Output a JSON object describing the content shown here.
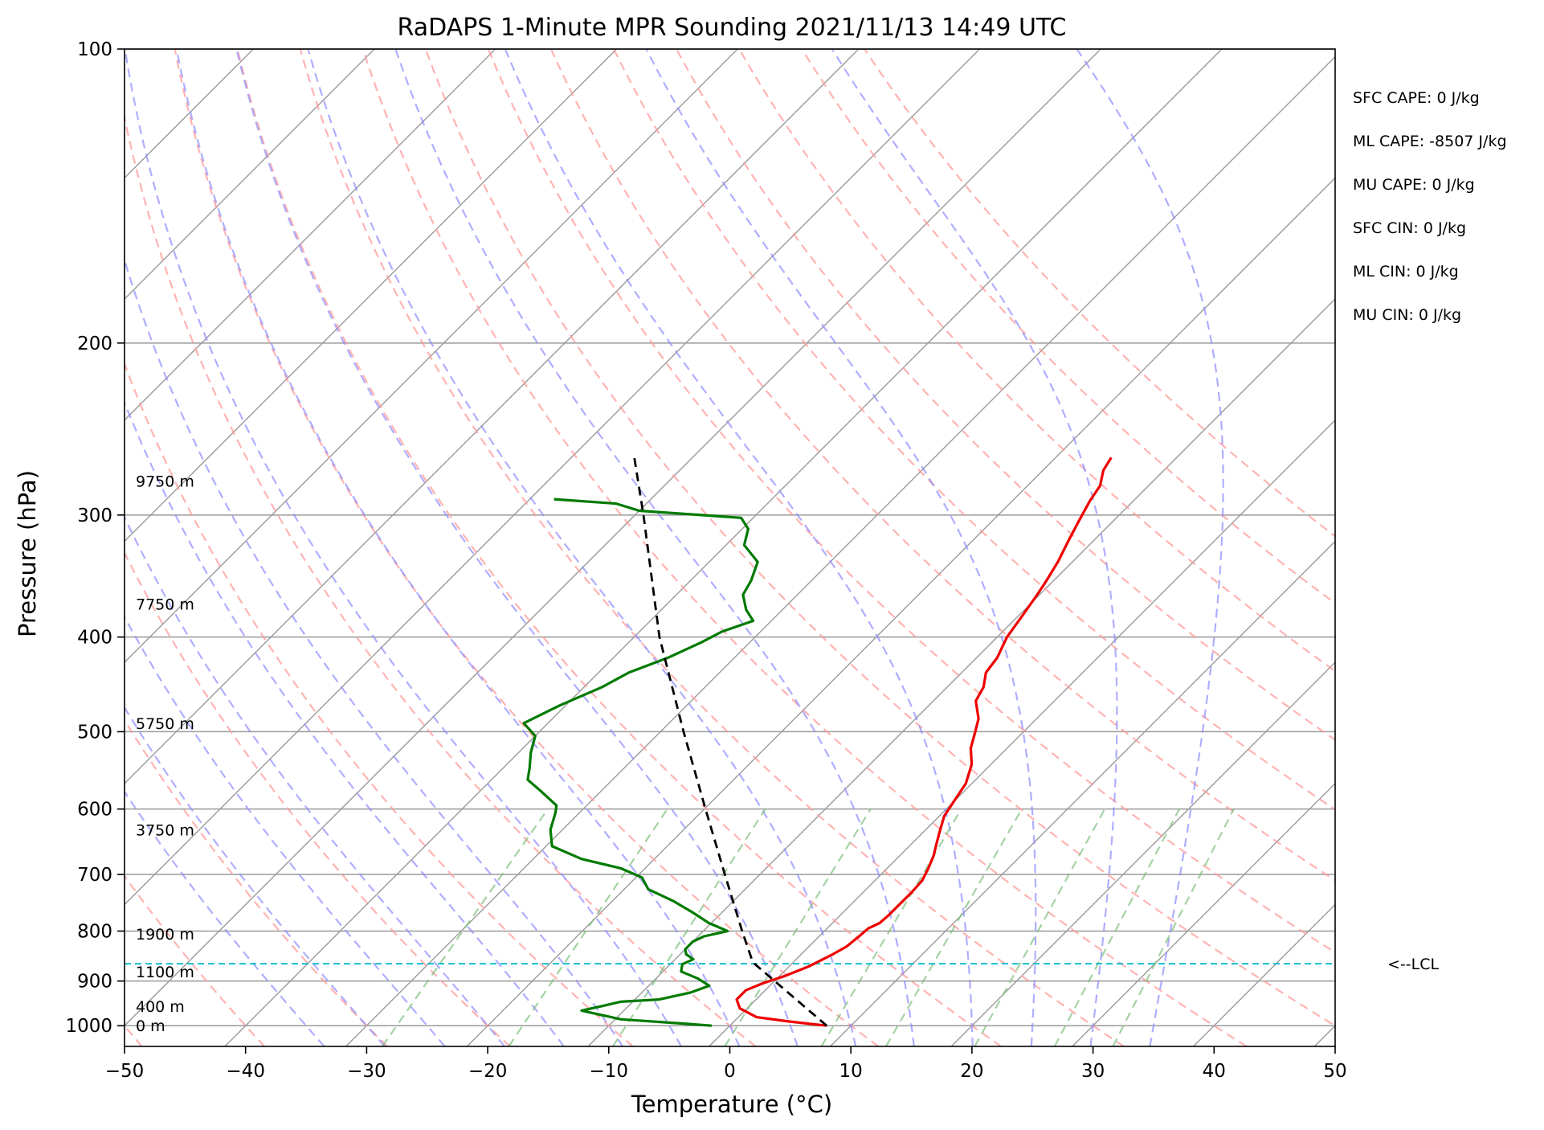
{
  "chart_data": {
    "type": "skew-t log-p sounding",
    "title": "RaDAPS 1-Minute MPR Sounding 2021/11/13 14:49 UTC",
    "xlabel": "Temperature (°C)",
    "ylabel": "Pressure (hPa)",
    "xlim": [
      -50,
      50
    ],
    "ylim_hpa": [
      1050,
      100
    ],
    "log_pressure": true,
    "grid": true,
    "x_ticks": [
      -50,
      -40,
      -30,
      -20,
      -10,
      0,
      10,
      20,
      30,
      40,
      50
    ],
    "x_tick_labels": [
      "−50",
      "−40",
      "−30",
      "−20",
      "−10",
      "0",
      "10",
      "20",
      "30",
      "40",
      "50"
    ],
    "y_ticks": [
      1000,
      900,
      800,
      700,
      600,
      500,
      400,
      300,
      200,
      100
    ],
    "y_tick_labels": [
      "1000",
      "900",
      "800",
      "700",
      "600",
      "500",
      "400",
      "300",
      "200",
      "100"
    ],
    "colors": {
      "temperature": "#ee0000",
      "dewpoint": "#007a00",
      "parcel": "#000000",
      "lcl_line": "#17becf",
      "dry_adiabat": "#ff9999",
      "moist_adiabat": "#8c8cff",
      "mixing_ratio": "#7fbf7f",
      "isotherm": "#9a9a9a"
    },
    "series": [
      {
        "name": "",
        "role": "temperature",
        "points": [
          [
            1000,
            8.0
          ],
          [
            990,
            4.5
          ],
          [
            980,
            1.5
          ],
          [
            960,
            -0.6
          ],
          [
            940,
            -1.6
          ],
          [
            920,
            -1.6
          ],
          [
            905,
            -0.8
          ],
          [
            890,
            0.4
          ],
          [
            870,
            1.6
          ],
          [
            845,
            2.6
          ],
          [
            830,
            3.1
          ],
          [
            810,
            3.3
          ],
          [
            795,
            3.4
          ],
          [
            785,
            3.9
          ],
          [
            770,
            4.0
          ],
          [
            750,
            4.0
          ],
          [
            730,
            4.0
          ],
          [
            710,
            3.9
          ],
          [
            690,
            3.4
          ],
          [
            670,
            2.8
          ],
          [
            650,
            2.0
          ],
          [
            630,
            1.2
          ],
          [
            610,
            0.4
          ],
          [
            590,
            0.0
          ],
          [
            565,
            -0.5
          ],
          [
            540,
            -1.6
          ],
          [
            520,
            -3.0
          ],
          [
            500,
            -4.0
          ],
          [
            485,
            -4.8
          ],
          [
            465,
            -6.5
          ],
          [
            450,
            -7.0
          ],
          [
            435,
            -8.0
          ],
          [
            420,
            -8.3
          ],
          [
            400,
            -9.2
          ],
          [
            380,
            -9.7
          ],
          [
            362,
            -10.2
          ],
          [
            350,
            -10.6
          ],
          [
            335,
            -11.2
          ],
          [
            320,
            -12.0
          ],
          [
            305,
            -12.8
          ],
          [
            290,
            -13.6
          ],
          [
            280,
            -14.0
          ],
          [
            270,
            -15.0
          ],
          [
            262,
            -15.4
          ]
        ]
      },
      {
        "name": "",
        "role": "dewpoint",
        "points": [
          [
            1000,
            -1.5
          ],
          [
            995,
            -4.0
          ],
          [
            985,
            -9.5
          ],
          [
            975,
            -11.5
          ],
          [
            965,
            -13.5
          ],
          [
            955,
            -12.2
          ],
          [
            945,
            -11.0
          ],
          [
            940,
            -8.0
          ],
          [
            925,
            -6.0
          ],
          [
            910,
            -5.0
          ],
          [
            895,
            -6.5
          ],
          [
            880,
            -8.5
          ],
          [
            865,
            -9.0
          ],
          [
            855,
            -8.5
          ],
          [
            845,
            -9.5
          ],
          [
            835,
            -10.0
          ],
          [
            820,
            -10.0
          ],
          [
            810,
            -9.5
          ],
          [
            800,
            -8.0
          ],
          [
            785,
            -10.2
          ],
          [
            765,
            -12.5
          ],
          [
            745,
            -15.0
          ],
          [
            725,
            -18.0
          ],
          [
            705,
            -19.5
          ],
          [
            690,
            -22.0
          ],
          [
            675,
            -26.0
          ],
          [
            655,
            -29.5
          ],
          [
            630,
            -31.0
          ],
          [
            605,
            -32.0
          ],
          [
            595,
            -32.5
          ],
          [
            575,
            -35.0
          ],
          [
            560,
            -37.0
          ],
          [
            545,
            -37.8
          ],
          [
            525,
            -39.0
          ],
          [
            505,
            -40.0
          ],
          [
            490,
            -42.0
          ],
          [
            470,
            -40.5
          ],
          [
            450,
            -38.5
          ],
          [
            435,
            -37.5
          ],
          [
            420,
            -35.5
          ],
          [
            405,
            -34.0
          ],
          [
            395,
            -33.2
          ],
          [
            385,
            -31.5
          ],
          [
            375,
            -33.0
          ],
          [
            362,
            -34.5
          ],
          [
            350,
            -35.0
          ],
          [
            335,
            -36.0
          ],
          [
            322,
            -38.5
          ],
          [
            310,
            -39.5
          ],
          [
            302,
            -41.0
          ],
          [
            297,
            -50.0
          ],
          [
            292,
            -52.5
          ],
          [
            289,
            -58.0
          ]
        ]
      },
      {
        "name": "",
        "role": "parcel",
        "points": [
          [
            1000,
            8.0
          ],
          [
            865,
            -3.0
          ],
          [
            860,
            -3.4
          ],
          [
            800,
            -6.8
          ],
          [
            700,
            -12.9
          ],
          [
            600,
            -19.9
          ],
          [
            500,
            -28.1
          ],
          [
            400,
            -37.9
          ],
          [
            300,
            -49.3
          ],
          [
            262,
            -54.8
          ]
        ]
      }
    ],
    "lcl_pressure_hpa": 864,
    "lcl_label": "<--LCL",
    "height_labels": [
      {
        "text": "0 m",
        "pressure_hpa": 1000
      },
      {
        "text": "400 m",
        "pressure_hpa": 955
      },
      {
        "text": "1100 m",
        "pressure_hpa": 880
      },
      {
        "text": "1900 m",
        "pressure_hpa": 805
      },
      {
        "text": "3750 m",
        "pressure_hpa": 630
      },
      {
        "text": "5750 m",
        "pressure_hpa": 490
      },
      {
        "text": "7750 m",
        "pressure_hpa": 370
      },
      {
        "text": "9750 m",
        "pressure_hpa": 277
      }
    ],
    "indices": [
      "SFC CAPE: 0 J/kg",
      "ML CAPE: -8507 J/kg",
      "MU CAPE: 0 J/kg",
      "SFC CIN: 0 J/kg",
      "ML CIN: 0 J/kg",
      "MU CIN: 0 J/kg"
    ],
    "isotherms_c": [
      -120,
      -110,
      -100,
      -90,
      -80,
      -70,
      -60,
      -50,
      -40,
      -30,
      -20,
      -10,
      0,
      10,
      20,
      30,
      40,
      50
    ],
    "dry_adiabats_c": [
      -50,
      -40,
      -30,
      -20,
      -10,
      0,
      10,
      20,
      30,
      40,
      50,
      60,
      70,
      80,
      90,
      100,
      110,
      120
    ],
    "moist_adiabats_c": [
      -35,
      -30,
      -25,
      -20,
      -15,
      -10,
      -5,
      0,
      5,
      10,
      15,
      20,
      25,
      30,
      35
    ],
    "mixing_ratios_gkg": [
      0.4,
      1,
      2,
      4,
      7,
      10,
      16,
      24,
      32
    ]
  }
}
